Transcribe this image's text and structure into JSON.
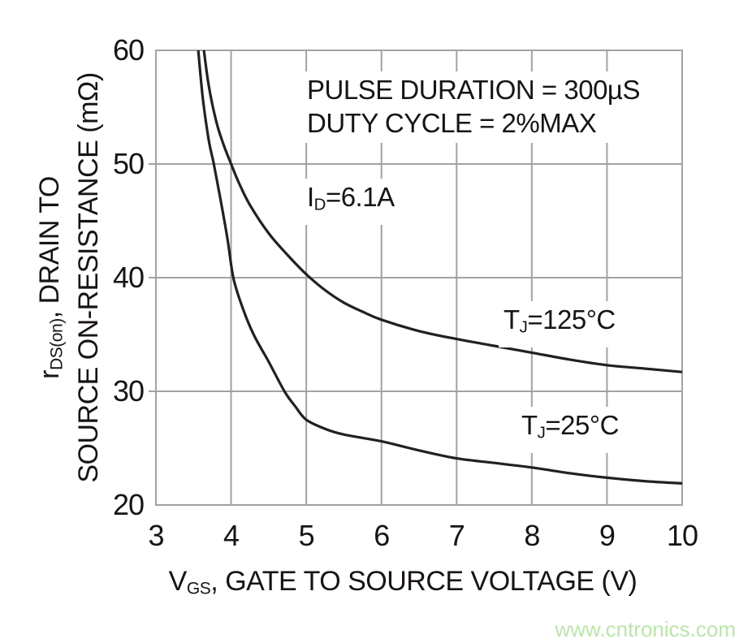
{
  "chart_data": {
    "type": "line",
    "xlabel_parts": {
      "pre": "V",
      "sub": "GS",
      "post": ", GATE TO SOURCE VOLTAGE (V)"
    },
    "ylabel_line1_parts": {
      "pre": "r",
      "sub": "DS(on)",
      "post": ", DRAIN TO"
    },
    "ylabel_line2": "SOURCE ON-RESISTANCE (mΩ)",
    "xlim": [
      3,
      10
    ],
    "ylim": [
      20,
      60
    ],
    "x_ticks": [
      "3",
      "4",
      "5",
      "6",
      "7",
      "8",
      "9",
      "10"
    ],
    "x_tick_values": [
      3,
      4,
      5,
      6,
      7,
      8,
      9,
      10
    ],
    "y_ticks": [
      "20",
      "30",
      "40",
      "50",
      "60"
    ],
    "y_tick_values": [
      20,
      30,
      40,
      50,
      60
    ],
    "x_gridlines": [
      4,
      5,
      6,
      7,
      8,
      9
    ],
    "y_gridlines": [
      30,
      40,
      50
    ],
    "grid": true,
    "legend_position": "inline-labels",
    "annotations": {
      "pulse": "PULSE DURATION = 300µS",
      "duty": "DUTY CYCLE = 2%MAX"
    },
    "id_label": {
      "pre": "I",
      "sub": "D",
      "post": "=6.1A"
    },
    "series": [
      {
        "name": "TJ=125°C",
        "label_parts": {
          "pre": "T",
          "sub": "J",
          "post": "=125°C"
        },
        "points": [
          [
            3.62,
            61.0
          ],
          [
            3.7,
            57.0
          ],
          [
            3.8,
            53.8
          ],
          [
            3.9,
            51.7
          ],
          [
            4.0,
            50.0
          ],
          [
            4.1,
            48.4
          ],
          [
            4.25,
            46.4
          ],
          [
            4.5,
            43.9
          ],
          [
            4.75,
            42.0
          ],
          [
            5.0,
            40.3
          ],
          [
            5.25,
            38.9
          ],
          [
            5.5,
            37.8
          ],
          [
            5.75,
            37.0
          ],
          [
            6.0,
            36.3
          ],
          [
            6.5,
            35.3
          ],
          [
            7.0,
            34.6
          ],
          [
            7.5,
            34.0
          ],
          [
            8.0,
            33.4
          ],
          [
            8.5,
            32.8
          ],
          [
            9.0,
            32.3
          ],
          [
            9.5,
            32.0
          ],
          [
            10.0,
            31.7
          ]
        ]
      },
      {
        "name": "TJ=25°C",
        "label_parts": {
          "pre": "T",
          "sub": "J",
          "post": "=25°C"
        },
        "points": [
          [
            3.55,
            61.0
          ],
          [
            3.62,
            56.0
          ],
          [
            3.7,
            52.2
          ],
          [
            3.77,
            50.0
          ],
          [
            3.85,
            47.2
          ],
          [
            3.95,
            43.5
          ],
          [
            4.03,
            40.0
          ],
          [
            4.15,
            37.4
          ],
          [
            4.3,
            35.0
          ],
          [
            4.5,
            32.6
          ],
          [
            4.71,
            30.0
          ],
          [
            4.85,
            28.7
          ],
          [
            5.0,
            27.5
          ],
          [
            5.25,
            26.7
          ],
          [
            5.5,
            26.2
          ],
          [
            6.0,
            25.6
          ],
          [
            6.5,
            24.8
          ],
          [
            7.0,
            24.1
          ],
          [
            7.5,
            23.7
          ],
          [
            8.0,
            23.3
          ],
          [
            8.5,
            22.8
          ],
          [
            9.0,
            22.4
          ],
          [
            9.5,
            22.1
          ],
          [
            10.0,
            21.9
          ]
        ]
      }
    ],
    "colors": {
      "grid": "#a2a2a2",
      "curve": "#241f20",
      "text": "#181314"
    }
  },
  "watermark": {
    "text": "www.cntronics.com",
    "color": "#bce4ab"
  }
}
